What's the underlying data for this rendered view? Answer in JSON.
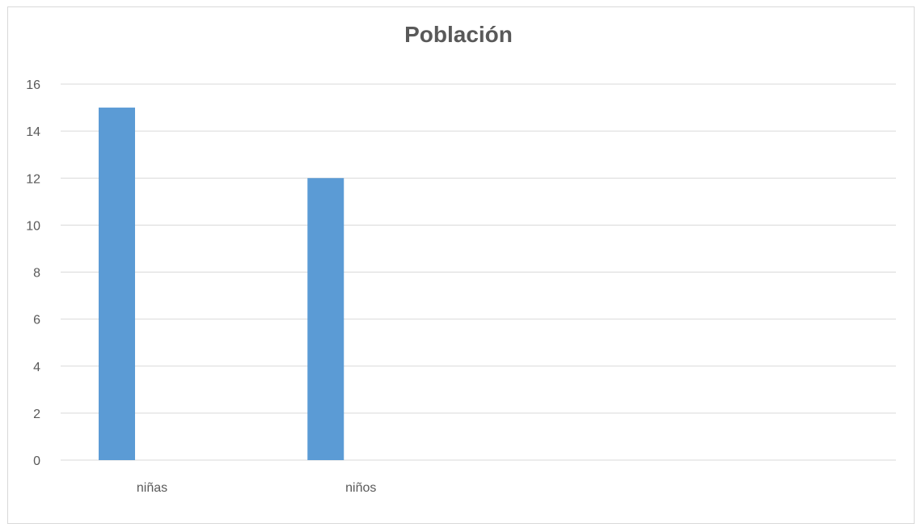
{
  "chart_data": {
    "type": "bar",
    "title": "Población",
    "categories": [
      "niñas",
      "niños",
      "",
      ""
    ],
    "values": [
      15,
      12,
      null,
      null
    ],
    "ylim": [
      0,
      16
    ],
    "yticks": [
      0,
      2,
      4,
      6,
      8,
      10,
      12,
      14,
      16
    ],
    "xlabel": "",
    "ylabel": "",
    "grid": true,
    "legend": "none",
    "bar_color": "#5b9bd5",
    "grid_color": "#d9d9d9",
    "text_color": "#595959"
  }
}
